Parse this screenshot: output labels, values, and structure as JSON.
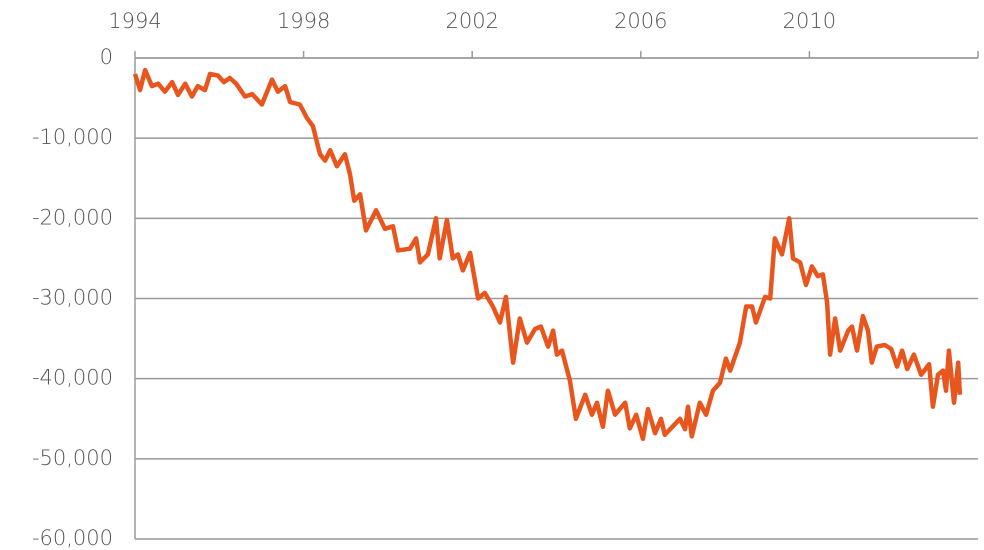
{
  "chart_data": {
    "type": "line",
    "x": [
      1994.0,
      1994.12,
      1994.24,
      1994.4,
      1994.55,
      1994.71,
      1994.88,
      1995.02,
      1995.19,
      1995.35,
      1995.49,
      1995.66,
      1995.78,
      1995.97,
      1996.11,
      1996.25,
      1996.4,
      1996.61,
      1996.78,
      1997.01,
      1997.25,
      1997.39,
      1997.56,
      1997.68,
      1997.91,
      1998.08,
      1998.22,
      1998.39,
      1998.51,
      1998.63,
      1998.79,
      1998.98,
      1999.1,
      1999.2,
      1999.34,
      1999.48,
      1999.72,
      1999.93,
      2000.12,
      2000.24,
      2000.52,
      2000.67,
      2000.76,
      2000.95,
      2001.14,
      2001.23,
      2001.4,
      2001.54,
      2001.66,
      2001.78,
      2001.95,
      2002.14,
      2002.3,
      2002.49,
      2002.66,
      2002.8,
      2002.97,
      2003.13,
      2003.3,
      2003.49,
      2003.63,
      2003.8,
      2003.92,
      2004.01,
      2004.13,
      2004.32,
      2004.46,
      2004.68,
      2004.84,
      2004.96,
      2005.1,
      2005.22,
      2005.39,
      2005.63,
      2005.74,
      2005.89,
      2006.05,
      2006.17,
      2006.34,
      2006.48,
      2006.57,
      2006.93,
      2007.05,
      2007.12,
      2007.21,
      2007.4,
      2007.55,
      2007.71,
      2007.88,
      2008.02,
      2008.12,
      2008.35,
      2008.5,
      2008.64,
      2008.73,
      2008.95,
      2009.07,
      2009.18,
      2009.35,
      2009.52,
      2009.61,
      2009.78,
      2009.92,
      2010.06,
      2010.2,
      2010.32,
      2010.42,
      2010.49,
      2010.61,
      2010.73,
      2010.92,
      2011.01,
      2011.13,
      2011.27,
      2011.39,
      2011.48,
      2011.6,
      2011.79,
      2011.94,
      2012.08,
      2012.2,
      2012.32,
      2012.48,
      2012.65,
      2012.84,
      2012.93,
      2013.05,
      2013.17,
      2013.24,
      2013.31,
      2013.43,
      2013.53,
      2013.57
    ],
    "series": [
      {
        "color": "#e8561e",
        "values": [
          -2000,
          -4000,
          -1500,
          -3500,
          -3200,
          -4200,
          -3000,
          -4600,
          -3200,
          -4800,
          -3500,
          -4000,
          -2000,
          -2200,
          -3000,
          -2500,
          -3200,
          -4800,
          -4500,
          -5800,
          -2700,
          -4200,
          -3500,
          -5500,
          -5800,
          -7500,
          -8500,
          -12000,
          -12800,
          -11500,
          -13500,
          -12000,
          -14500,
          -17800,
          -17000,
          -21500,
          -19000,
          -21300,
          -21000,
          -24000,
          -23800,
          -22500,
          -25500,
          -24500,
          -20000,
          -25000,
          -20200,
          -25000,
          -24500,
          -26500,
          -24300,
          -30000,
          -29300,
          -31000,
          -33000,
          -29800,
          -38000,
          -32500,
          -35500,
          -33800,
          -33500,
          -36000,
          -34000,
          -37000,
          -36500,
          -40300,
          -45000,
          -42000,
          -44500,
          -43000,
          -46000,
          -41500,
          -44500,
          -43000,
          -46200,
          -44500,
          -47500,
          -43800,
          -46800,
          -45000,
          -47000,
          -45000,
          -46300,
          -43500,
          -47200,
          -43000,
          -44500,
          -41500,
          -40500,
          -37500,
          -39000,
          -35500,
          -31000,
          -31000,
          -33000,
          -29800,
          -30000,
          -22500,
          -24500,
          -20000,
          -25000,
          -25500,
          -28300,
          -26000,
          -27200,
          -27000,
          -30500,
          -37000,
          -32500,
          -36500,
          -34000,
          -33500,
          -36500,
          -32200,
          -34000,
          -38000,
          -36000,
          -35800,
          -36300,
          -38500,
          -36500,
          -38800,
          -37000,
          -39500,
          -38200,
          -43500,
          -39500,
          -39000,
          -41500,
          -36500,
          -43000,
          -38000,
          -42000
        ]
      }
    ],
    "xlim": [
      1994,
      2014
    ],
    "xticks": [
      1994,
      1998,
      2002,
      2006,
      2010
    ],
    "ylim": [
      -60000,
      0
    ],
    "yticks": [
      0,
      {
        "value": -10000,
        "label": "-10,000"
      },
      {
        "value": -20000,
        "label": "-20,000"
      },
      {
        "value": -30000,
        "label": "-30,000"
      },
      {
        "value": -40000,
        "label": "-40,000"
      },
      {
        "value": -50000,
        "label": "-50,000"
      },
      {
        "value": -60000,
        "label": "-60,000"
      }
    ],
    "grid": true
  }
}
